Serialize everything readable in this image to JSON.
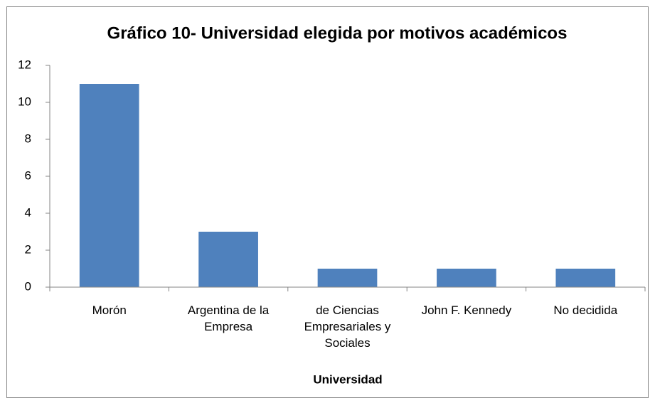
{
  "chart_data": {
    "type": "bar",
    "title": "Gráfico 10- Universidad elegida por motivos académicos",
    "x_label": "Universidad",
    "categories": [
      "Morón",
      "Argentina de la Empresa",
      "de Ciencias Empresariales y Sociales",
      "John F. Kennedy",
      "No decidida"
    ],
    "values": [
      11,
      3,
      1,
      1,
      1
    ],
    "color": "#4f81bd",
    "ylim": [
      0,
      12
    ],
    "yticks": [
      0,
      2,
      4,
      6,
      8,
      10,
      12
    ],
    "grid": false
  }
}
